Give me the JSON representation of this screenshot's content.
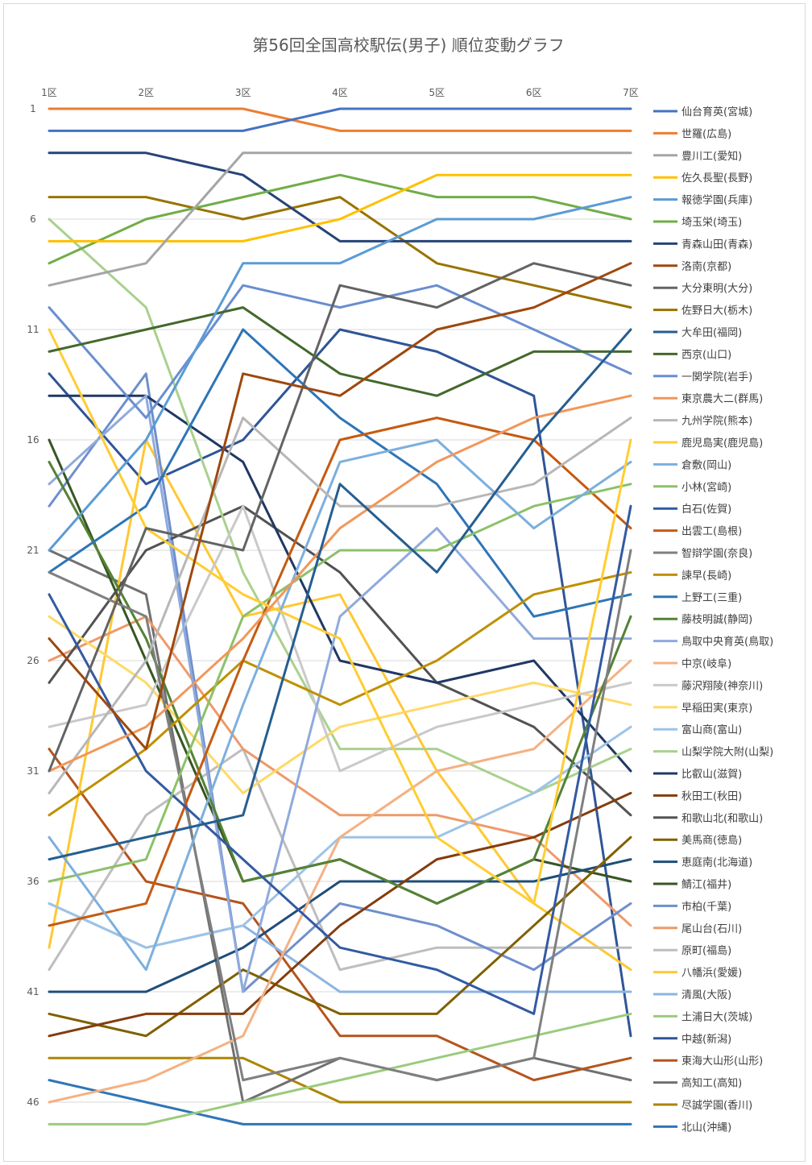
{
  "chart_data": {
    "type": "line",
    "title": "第56回全国高校駅伝(男子) 順位変動グラフ",
    "x": [
      "1区",
      "2区",
      "3区",
      "4区",
      "5区",
      "6区",
      "7区"
    ],
    "y_ticks": [
      "1",
      "6",
      "11",
      "16",
      "21",
      "26",
      "31",
      "36",
      "41",
      "46"
    ],
    "y_axis": "reversed",
    "ylim": [
      1,
      47
    ],
    "grid": "horizontal",
    "legend_position": "right",
    "series": [
      {
        "name": "仙台育英(宮城)",
        "color": "#4472C4",
        "values": [
          2,
          2,
          2,
          1,
          1,
          1,
          1
        ]
      },
      {
        "name": "世羅(広島)",
        "color": "#ED7D31",
        "values": [
          1,
          1,
          1,
          2,
          2,
          2,
          2
        ]
      },
      {
        "name": "豊川工(愛知)",
        "color": "#A5A5A5",
        "values": [
          9,
          8,
          3,
          3,
          3,
          3,
          3
        ]
      },
      {
        "name": "佐久長聖(長野)",
        "color": "#FFC000",
        "values": [
          7,
          7,
          7,
          6,
          4,
          4,
          4
        ]
      },
      {
        "name": "報徳学園(兵庫)",
        "color": "#5B9BD5",
        "values": [
          21,
          16,
          8,
          8,
          6,
          6,
          5
        ]
      },
      {
        "name": "埼玉栄(埼玉)",
        "color": "#70AD47",
        "values": [
          8,
          6,
          5,
          4,
          5,
          5,
          6
        ]
      },
      {
        "name": "青森山田(青森)",
        "color": "#264478",
        "values": [
          3,
          3,
          4,
          7,
          7,
          7,
          7
        ]
      },
      {
        "name": "洛南(京都)",
        "color": "#9E480E",
        "values": [
          25,
          30,
          13,
          14,
          11,
          10,
          8
        ]
      },
      {
        "name": "大分東明(大分)",
        "color": "#636363",
        "values": [
          31,
          20,
          21,
          9,
          10,
          8,
          9
        ]
      },
      {
        "name": "佐野日大(栃木)",
        "color": "#997300",
        "values": [
          5,
          5,
          6,
          5,
          8,
          9,
          10
        ]
      },
      {
        "name": "大牟田(福岡)",
        "color": "#255E91",
        "values": [
          35,
          34,
          33,
          18,
          22,
          16,
          11
        ]
      },
      {
        "name": "西京(山口)",
        "color": "#43682B",
        "values": [
          12,
          11,
          10,
          13,
          14,
          12,
          12
        ]
      },
      {
        "name": "一関学院(岩手)",
        "color": "#698ED0",
        "values": [
          10,
          15,
          9,
          10,
          9,
          11,
          13
        ]
      },
      {
        "name": "東京農大二(群馬)",
        "color": "#F1975A",
        "values": [
          31,
          29,
          25,
          20,
          17,
          15,
          14
        ]
      },
      {
        "name": "九州学院(熊本)",
        "color": "#B7B7B7",
        "values": [
          32,
          26,
          15,
          19,
          19,
          18,
          15
        ]
      },
      {
        "name": "鹿児島実(鹿児島)",
        "color": "#FFCD33",
        "values": [
          11,
          20,
          23,
          25,
          34,
          37,
          16
        ]
      },
      {
        "name": "倉敷(岡山)",
        "color": "#7CAFDD",
        "values": [
          34,
          40,
          28,
          17,
          16,
          20,
          17
        ]
      },
      {
        "name": "小林(宮崎)",
        "color": "#8CC168",
        "values": [
          36,
          35,
          24,
          21,
          21,
          19,
          18
        ]
      },
      {
        "name": "白石(佐賀)",
        "color": "#335AA1",
        "values": [
          23,
          31,
          35,
          39,
          40,
          42,
          19
        ]
      },
      {
        "name": "出雲工(島根)",
        "color": "#C55A11",
        "values": [
          38,
          37,
          26,
          16,
          15,
          16,
          20
        ]
      },
      {
        "name": "智辯学園(奈良)",
        "color": "#7F7F7F",
        "values": [
          22,
          24,
          45,
          44,
          45,
          44,
          21
        ]
      },
      {
        "name": "諫早(長崎)",
        "color": "#BF9000",
        "values": [
          33,
          30,
          26,
          28,
          26,
          23,
          22
        ]
      },
      {
        "name": "上野工(三重)",
        "color": "#2E75B6",
        "values": [
          22,
          19,
          11,
          15,
          18,
          24,
          23
        ]
      },
      {
        "name": "藤枝明誠(静岡)",
        "color": "#548235",
        "values": [
          17,
          25,
          36,
          35,
          37,
          35,
          24
        ]
      },
      {
        "name": "鳥取中央育英(鳥取)",
        "color": "#8FAADC",
        "values": [
          18,
          14,
          41,
          24,
          20,
          25,
          25
        ]
      },
      {
        "name": "中京(岐阜)",
        "color": "#F4B183",
        "values": [
          46,
          45,
          43,
          34,
          31,
          30,
          26
        ]
      },
      {
        "name": "藤沢翔陵(神奈川)",
        "color": "#C9C9C9",
        "values": [
          29,
          28,
          19,
          31,
          29,
          28,
          27
        ]
      },
      {
        "name": "早稲田実(東京)",
        "color": "#FFD966",
        "values": [
          24,
          27,
          32,
          29,
          28,
          27,
          28
        ]
      },
      {
        "name": "富山商(富山)",
        "color": "#9DC3E6",
        "values": [
          37,
          39,
          38,
          34,
          34,
          32,
          29
        ]
      },
      {
        "name": "山梨学院大附(山梨)",
        "color": "#A9D18E",
        "values": [
          6,
          10,
          22,
          30,
          30,
          32,
          30
        ]
      },
      {
        "name": "比叡山(滋賀)",
        "color": "#203864",
        "values": [
          14,
          14,
          17,
          26,
          27,
          26,
          31
        ]
      },
      {
        "name": "秋田工(秋田)",
        "color": "#843C0C",
        "values": [
          43,
          42,
          42,
          38,
          35,
          34,
          32
        ]
      },
      {
        "name": "和歌山北(和歌山)",
        "color": "#525252",
        "values": [
          27,
          21,
          19,
          22,
          27,
          29,
          33
        ]
      },
      {
        "name": "美馬商(徳島)",
        "color": "#7F6000",
        "values": [
          42,
          43,
          40,
          42,
          42,
          38,
          34
        ]
      },
      {
        "name": "恵庭南(北海道)",
        "color": "#1F4E79",
        "values": [
          41,
          41,
          39,
          36,
          36,
          36,
          35
        ]
      },
      {
        "name": "鯖江(福井)",
        "color": "#375623",
        "values": [
          16,
          26,
          36,
          35,
          37,
          35,
          36
        ]
      },
      {
        "name": "市柏(千葉)",
        "color": "#6F8FCC",
        "values": [
          19,
          13,
          41,
          37,
          38,
          40,
          37
        ]
      },
      {
        "name": "尾山台(石川)",
        "color": "#EE9A6B",
        "values": [
          26,
          24,
          30,
          33,
          33,
          34,
          38
        ]
      },
      {
        "name": "原町(福島)",
        "color": "#BEBEBE",
        "values": [
          40,
          33,
          30,
          40,
          39,
          39,
          39
        ]
      },
      {
        "name": "八幡浜(愛媛)",
        "color": "#FFC833",
        "values": [
          39,
          16,
          24,
          23,
          31,
          37,
          40
        ]
      },
      {
        "name": "清風(大阪)",
        "color": "#8EB4E3",
        "values": [
          37,
          39,
          38,
          41,
          41,
          41,
          41
        ]
      },
      {
        "name": "土浦日大(茨城)",
        "color": "#9BCB7E",
        "values": [
          47,
          47,
          46,
          45,
          44,
          43,
          42
        ]
      },
      {
        "name": "中越(新潟)",
        "color": "#2F5597",
        "values": [
          13,
          18,
          16,
          11,
          12,
          14,
          43
        ]
      },
      {
        "name": "東海大山形(山形)",
        "color": "#B5541C",
        "values": [
          30,
          36,
          37,
          43,
          43,
          45,
          44
        ]
      },
      {
        "name": "高知工(高知)",
        "color": "#707070",
        "values": [
          21,
          23,
          46,
          44,
          45,
          44,
          45
        ]
      },
      {
        "name": "尽誠学園(香川)",
        "color": "#AC8600",
        "values": [
          44,
          44,
          44,
          46,
          46,
          46,
          46
        ]
      },
      {
        "name": "北山(沖縄)",
        "color": "#2E75B6",
        "values": [
          45,
          46,
          47,
          47,
          47,
          47,
          47
        ]
      }
    ]
  }
}
